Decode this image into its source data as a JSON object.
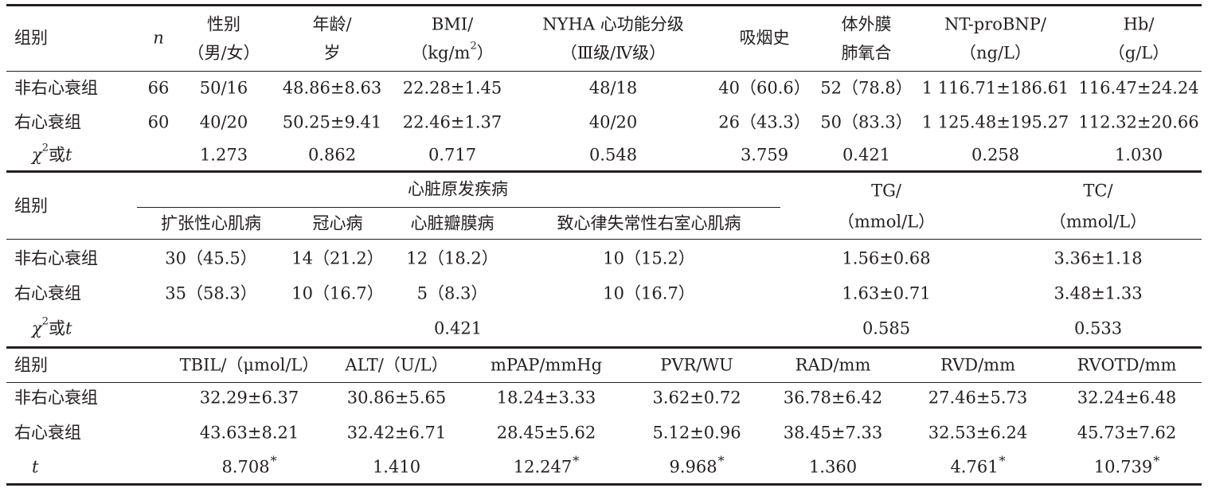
{
  "s1": {
    "headers": {
      "group": "组别",
      "n": "n",
      "sex": [
        "性别",
        "（男/女）"
      ],
      "age": [
        "年龄/",
        "岁"
      ],
      "bmi": [
        "BMI/",
        "（kg/m",
        "2",
        "）"
      ],
      "nyha": [
        "NYHA 心功能分级",
        "（Ⅲ级/Ⅳ级）"
      ],
      "smoke": "吸烟史",
      "ecmo": [
        "体外膜",
        "肺氧合"
      ],
      "ntprobnp": [
        "NT-proBNP/",
        "（ng/L）"
      ],
      "hb": [
        "Hb/",
        "（g/L）"
      ]
    },
    "rows": [
      {
        "group": "非右心衰组",
        "n": "66",
        "sex": "50/16",
        "age": "48.86±8.63",
        "bmi": "22.28±1.45",
        "nyha": "48/18",
        "smoke": "40（60.6）",
        "ecmo": "52（78.8）",
        "ntprobnp": "1 116.71±186.61",
        "hb": "116.47±24.24"
      },
      {
        "group": "右心衰组",
        "n": "60",
        "sex": "40/20",
        "age": "50.25±9.41",
        "bmi": "22.46±1.37",
        "nyha": "40/20",
        "smoke": "26（43.3）",
        "ecmo": "50（83.3）",
        "ntprobnp": "1 125.48±195.27",
        "hb": "112.32±20.66"
      }
    ],
    "stat": {
      "label_chi": "χ",
      "label_sup": "2",
      "label_or": "或",
      "label_t": "t",
      "sex": "1.273",
      "age": "0.862",
      "bmi": "0.717",
      "nyha": "0.548",
      "smoke": "3.759",
      "ecmo": "0.421",
      "ntprobnp": "0.258",
      "hb": "1.030"
    }
  },
  "s2": {
    "headers": {
      "group": "组别",
      "disease": "心脏原发疾病",
      "dcm": "扩张性心肌病",
      "chd": "冠心病",
      "valve": "心脏瓣膜病",
      "arvc": "致心律失常性右室心肌病",
      "tg": [
        "TG/",
        "（mmol/L）"
      ],
      "tc": [
        "TC/",
        "（mmol/L）"
      ]
    },
    "rows": [
      {
        "group": "非右心衰组",
        "dcm": "30（45.5）",
        "chd": "14（21.2）",
        "valve": "12（18.2）",
        "arvc": "10（15.2）",
        "tg": "1.56±0.68",
        "tc": "3.36±1.18"
      },
      {
        "group": "右心衰组",
        "dcm": "35（58.3）",
        "chd": "10（16.7）",
        "valve": "5（8.3）",
        "arvc": "10（16.7）",
        "tg": "1.63±0.71",
        "tc": "3.48±1.33"
      }
    ],
    "stat": {
      "label_chi": "χ",
      "label_sup": "2",
      "label_or": "或",
      "label_t": "t",
      "disease": "0.421",
      "tg": "0.585",
      "tc": "0.533"
    }
  },
  "s3": {
    "headers": {
      "group": "组别",
      "tbil": "TBIL/（μmol/L）",
      "alt": "ALT/（U/L）",
      "mpap": "mPAP/mmHg",
      "pvr": "PVR/WU",
      "rad": "RAD/mm",
      "rvd": "RVD/mm",
      "rvotd": "RVOTD/mm"
    },
    "rows": [
      {
        "group": "非右心衰组",
        "tbil": "32.29±6.37",
        "alt": "30.86±5.65",
        "mpap": "18.24±3.33",
        "pvr": "3.62±0.72",
        "rad": "36.78±6.42",
        "rvd": "27.46±5.73",
        "rvotd": "32.24±6.48"
      },
      {
        "group": "右心衰组",
        "tbil": "43.63±8.21",
        "alt": "32.42±6.71",
        "mpap": "28.45±5.62",
        "pvr": "5.12±0.96",
        "rad": "38.45±7.33",
        "rvd": "32.53±6.24",
        "rvotd": "45.73±7.62"
      }
    ],
    "stat": {
      "label_t": "t",
      "tbil": "8.708",
      "alt": "1.410",
      "mpap": "12.247",
      "pvr": "9.968",
      "rad": "1.360",
      "rvd": "4.761",
      "rvotd": "10.739",
      "sig_mark": "*"
    }
  }
}
